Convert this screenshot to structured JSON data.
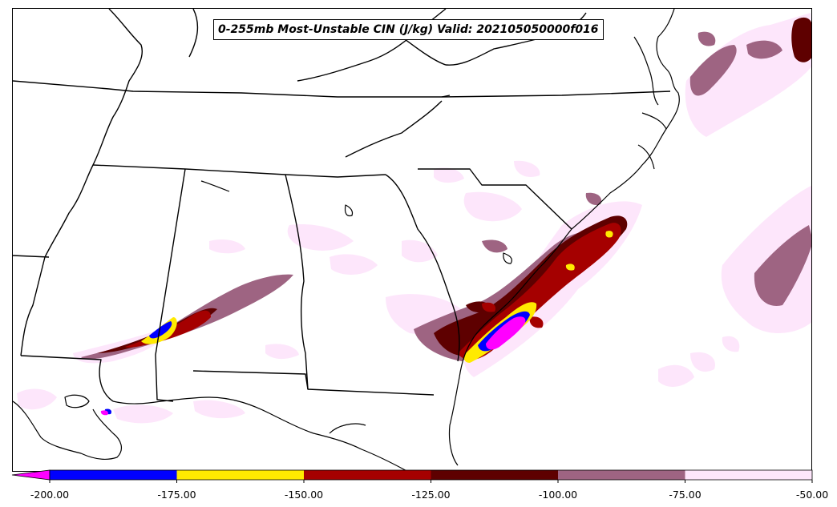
{
  "title": "0-255mb Most-Unstable CIN (J/kg) Valid: 202105050000f016",
  "colorbar": {
    "levels": [
      -200,
      -175,
      -150,
      -125,
      -100,
      -75,
      -50
    ],
    "tick_labels": [
      "-200.00",
      "-175.00",
      "-150.00",
      "-125.00",
      "-100.00",
      "-75.00",
      "-50.00"
    ],
    "colors": [
      "#0000ff",
      "#ffea00",
      "#a50000",
      "#5e0000",
      "#9e6482",
      "#fde6fb"
    ],
    "extend_min_color": "#ff00ff"
  },
  "map": {
    "region": "Southeastern United States",
    "coastline_color": "#000000",
    "state_border_color": "#000000"
  }
}
